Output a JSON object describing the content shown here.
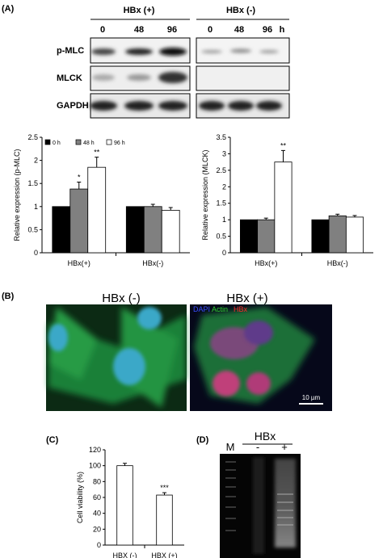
{
  "panel_labels": [
    "(A)",
    "(B)",
    "(C)",
    "(D)"
  ],
  "blot": {
    "groups": [
      "HBx (+)",
      "HBx (-)"
    ],
    "times": [
      "0",
      "48",
      "96",
      "0",
      "48",
      "96",
      "h"
    ],
    "rows": [
      "p-MLC",
      "MLCK",
      "GAPDH"
    ]
  },
  "micrograph": {
    "titles": [
      "HBx (-)",
      "HBx (+)"
    ],
    "stains": [
      {
        "text": "DAPI",
        "color": "#3a4dff"
      },
      {
        "text": "Actin",
        "color": "#2fd02f"
      },
      {
        "text": "HBx",
        "color": "#ff2a2a"
      }
    ],
    "scale_bar": "10 µm"
  },
  "gel": {
    "title": "HBx",
    "lanes": [
      "M",
      "-",
      "+"
    ]
  },
  "chart_data": [
    {
      "type": "bar",
      "ylabel": "Relative expression (p-MLC)",
      "categories": [
        "HBx(+)",
        "HBx(-)"
      ],
      "ylim": [
        0,
        2.5
      ],
      "yticks": [
        0,
        0.5,
        1,
        1.5,
        2,
        2.5
      ],
      "legend": "top-left",
      "series": [
        {
          "name": "0 h",
          "color": "#000000",
          "values": [
            1,
            1
          ],
          "errors": [
            0,
            0
          ],
          "significance": [
            null,
            null
          ]
        },
        {
          "name": "48 h",
          "color": "#808080",
          "values": [
            1.38,
            1.0
          ],
          "errors": [
            0.15,
            0.05
          ],
          "significance": [
            "*",
            null
          ]
        },
        {
          "name": "96 h",
          "color": "#ffffff",
          "values": [
            1.85,
            0.92
          ],
          "errors": [
            0.22,
            0.06
          ],
          "significance": [
            "**",
            null
          ]
        }
      ]
    },
    {
      "type": "bar",
      "ylabel": "Relative expression (MLCK)",
      "categories": [
        "HBx(+)",
        "HBx(-)"
      ],
      "ylim": [
        0,
        3.5
      ],
      "yticks": [
        0,
        0.5,
        1,
        1.5,
        2,
        2.5,
        3,
        3.5
      ],
      "series": [
        {
          "color": "#000000",
          "values": [
            1,
            1
          ],
          "errors": [
            0,
            0
          ],
          "significance": [
            null,
            null
          ]
        },
        {
          "color": "#808080",
          "values": [
            1.0,
            1.12
          ],
          "errors": [
            0.05,
            0.05
          ],
          "significance": [
            null,
            null
          ]
        },
        {
          "color": "#ffffff",
          "values": [
            2.75,
            1.08
          ],
          "errors": [
            0.35,
            0.05
          ],
          "significance": [
            "**",
            null
          ]
        }
      ]
    },
    {
      "type": "bar",
      "ylabel": "Cell viability (%)",
      "categories": [
        "HBX (-)",
        "HBX (+)"
      ],
      "ylim": [
        0,
        120
      ],
      "yticks": [
        0,
        20,
        40,
        60,
        80,
        100,
        120
      ],
      "series": [
        {
          "color": "#ffffff",
          "values": [
            100,
            63
          ],
          "errors": [
            3,
            3
          ],
          "significance": [
            null,
            "***"
          ]
        }
      ]
    }
  ]
}
